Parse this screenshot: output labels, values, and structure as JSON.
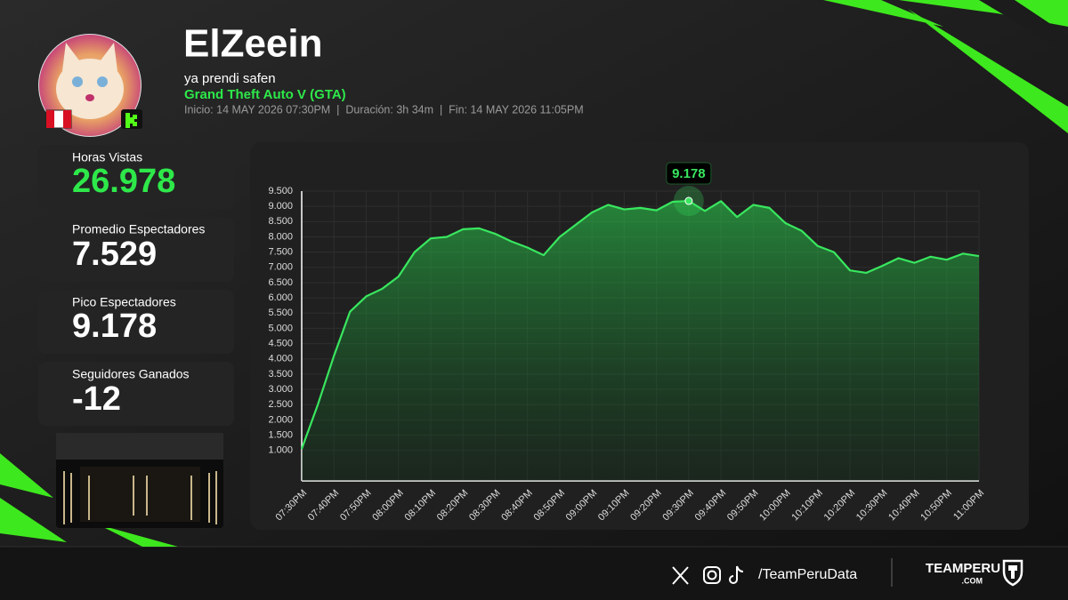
{
  "header": {
    "streamer": "ElZeein",
    "stream_title": "ya prendi safen",
    "game": "Grand Theft Auto V (GTA)",
    "info": "Inicio: 14 MAY 2026 07:30PM  |  Duración: 3h 34m  |  Fin: 14 MAY 2026 11:05PM"
  },
  "stats": [
    {
      "label": "Horas Vistas",
      "value": "26.978"
    },
    {
      "label": "Promedio Espectadores",
      "value": "7.529"
    },
    {
      "label": "Pico Espectadores",
      "value": "9.178"
    },
    {
      "label": "Seguidores Ganados",
      "value": "-12"
    }
  ],
  "chart_data": {
    "type": "line",
    "color": "#39e75f",
    "grid": true,
    "categories": [
      "07:30PM",
      null,
      "07:40PM",
      null,
      "07:50PM",
      null,
      "08:00PM",
      null,
      "08:10PM",
      null,
      "08:20PM",
      null,
      "08:30PM",
      null,
      "08:40PM",
      null,
      "08:50PM",
      null,
      "09:00PM",
      null,
      "09:10PM",
      null,
      "09:20PM",
      null,
      "09:30PM",
      null,
      "09:40PM",
      null,
      "09:50PM",
      null,
      "10:00PM",
      null,
      "10:10PM",
      null,
      "10:20PM",
      null,
      "10:30PM",
      null,
      "10:40PM",
      null,
      "10:50PM",
      null,
      "11:00PM"
    ],
    "values": [
      1050,
      2500,
      4100,
      5550,
      6050,
      6300,
      6700,
      7500,
      7950,
      8000,
      8250,
      8280,
      8100,
      7850,
      7650,
      7400,
      8000,
      8400,
      8800,
      9050,
      8900,
      8950,
      8870,
      9150,
      9178,
      8850,
      9170,
      8650,
      9050,
      8950,
      8450,
      8200,
      7700,
      7500,
      6900,
      6820,
      7050,
      7300,
      7150,
      7350,
      7250,
      7450,
      7370
    ],
    "value_labels": [
      null,
      null,
      null,
      null,
      null,
      null,
      null,
      null,
      null,
      null,
      null,
      null,
      null,
      null,
      null,
      null,
      null,
      null,
      null,
      null,
      null,
      null,
      null,
      null,
      "9.178",
      null,
      null,
      null,
      null,
      null,
      null,
      null,
      null,
      null,
      null,
      null,
      null,
      null,
      null,
      null,
      null,
      null,
      null
    ],
    "ylim": [
      0,
      9500
    ],
    "yticks": [
      {
        "value": 1000,
        "label": "1.000"
      },
      {
        "value": 1500,
        "label": "1.500"
      },
      {
        "value": 2000,
        "label": "2.000"
      },
      {
        "value": 2500,
        "label": "2.500"
      },
      {
        "value": 3000,
        "label": "3.000"
      },
      {
        "value": 3500,
        "label": "3.500"
      },
      {
        "value": 4000,
        "label": "4.000"
      },
      {
        "value": 4500,
        "label": "4.500"
      },
      {
        "value": 5000,
        "label": "5.000"
      },
      {
        "value": 5500,
        "label": "5.500"
      },
      {
        "value": 6000,
        "label": "6.000"
      },
      {
        "value": 6500,
        "label": "6.500"
      },
      {
        "value": 7000,
        "label": "7.000"
      },
      {
        "value": 7500,
        "label": "7.500"
      },
      {
        "value": 8000,
        "label": "8.000"
      },
      {
        "value": 8500,
        "label": "8.500"
      },
      {
        "value": 9000,
        "label": "9.000"
      },
      {
        "value": 9500,
        "label": "9.500"
      }
    ]
  },
  "footer": {
    "handle": "/TeamPeruData",
    "brand": "TEAMPERU",
    "brand_sub": ".COM"
  }
}
